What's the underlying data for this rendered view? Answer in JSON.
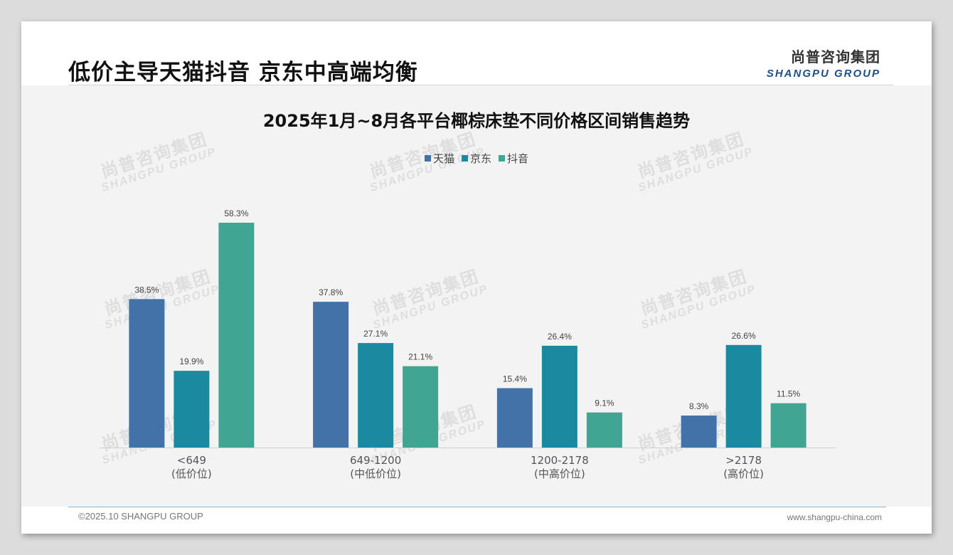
{
  "page": {
    "title": "低价主导天猫抖音 京东中高端均衡",
    "logo_cn": "尚普咨询集团",
    "logo_en": "SHANGPU GROUP",
    "watermark_cn": "尚普咨询集团",
    "watermark_en": "SHANGPU GROUP",
    "footer_left": "©2025.10 SHANGPU GROUP",
    "footer_right": "www.shangpu-china.com"
  },
  "colors": {
    "tmall": "#4272a8",
    "jd": "#1b8aa0",
    "douyin": "#40a592"
  },
  "chart_data": {
    "type": "bar",
    "title": "2025年1月~8月各平台椰棕床垫不同价格区间销售趋势",
    "xlabel": "",
    "ylabel": "",
    "categories": [
      "<649",
      "649-1200",
      "1200-2178",
      ">2178"
    ],
    "category_sublabels": [
      "(低价位)",
      "(中低价位)",
      "(中高价位)",
      "(高价位)"
    ],
    "series": [
      {
        "name": "天猫",
        "values": [
          38.5,
          37.8,
          15.4,
          8.3
        ],
        "labels": [
          "38.5%",
          "37.8%",
          "15.4%",
          "8.3%"
        ]
      },
      {
        "name": "京东",
        "values": [
          19.9,
          27.1,
          26.4,
          26.6
        ],
        "labels": [
          "19.9%",
          "27.1%",
          "26.4%",
          "26.6%"
        ]
      },
      {
        "name": "抖音",
        "values": [
          58.3,
          21.1,
          9.1,
          11.5
        ],
        "labels": [
          "58.3%",
          "21.1%",
          "9.1%",
          "11.5%"
        ]
      }
    ],
    "ylim": [
      0,
      60
    ],
    "y_axis_visible": false,
    "grid": false,
    "legend": "top-center",
    "data_labels": true
  }
}
